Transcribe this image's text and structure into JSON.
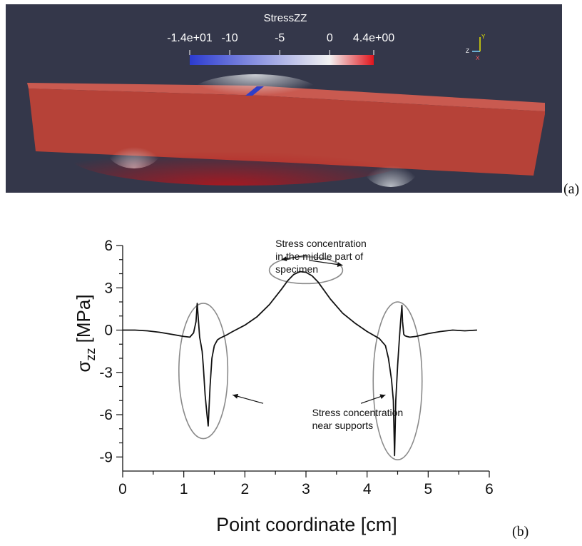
{
  "panel_a": {
    "label": "(a)",
    "colorbar": {
      "title": "StressZZ",
      "ticks": [
        {
          "text": "-1.4e+01",
          "value": -14
        },
        {
          "text": "-10",
          "value": -10
        },
        {
          "text": "-5",
          "value": -5
        },
        {
          "text": "0",
          "value": 0
        },
        {
          "text": "4.4e+00",
          "value": 4.4
        }
      ],
      "range": [
        -14,
        4.4
      ],
      "colors": {
        "low": "#2b3bd0",
        "mid": "#f2f2f2",
        "high": "#e0141c"
      }
    },
    "axes_widget": {
      "y": "Y",
      "z": "Z",
      "x": "X"
    },
    "colors": {
      "background": "#34374a",
      "beam": "#b9463c"
    }
  },
  "panel_b": {
    "label": "(b)",
    "chart_data": {
      "type": "line",
      "xlabel": "Point coordinate [cm]",
      "ylabel_main": "σ",
      "ylabel_sub": "zz",
      "ylabel_unit": " [MPa]",
      "xlim": [
        0,
        6
      ],
      "ylim": [
        -10,
        6
      ],
      "xticks": [
        0,
        1,
        2,
        3,
        4,
        5,
        6
      ],
      "yticks": [
        6,
        3,
        0,
        -3,
        -6,
        -9
      ],
      "grid": false,
      "series": [
        {
          "x": [
            0,
            0.2,
            0.4,
            0.6,
            0.8,
            1.0,
            1.1,
            1.16,
            1.2,
            1.22,
            1.24,
            1.26,
            1.28,
            1.3,
            1.32,
            1.35,
            1.38,
            1.4,
            1.43,
            1.46,
            1.5,
            1.55,
            1.6,
            1.7,
            1.8,
            2.0,
            2.2,
            2.4,
            2.6,
            2.7,
            2.8,
            2.9,
            3.0,
            3.1,
            3.2,
            3.4,
            3.6,
            3.8,
            4.0,
            4.2,
            4.3,
            4.35,
            4.4,
            4.43,
            4.45,
            4.47,
            4.5,
            4.53,
            4.55,
            4.57,
            4.58,
            4.6,
            4.62,
            4.65,
            4.7,
            4.8,
            5.0,
            5.2,
            5.4,
            5.6,
            5.8
          ],
          "y": [
            0,
            0,
            -0.05,
            -0.15,
            -0.3,
            -0.45,
            -0.5,
            -0.2,
            0.6,
            1.9,
            0.7,
            -0.5,
            -1.0,
            -1.5,
            -2.6,
            -4.6,
            -6.0,
            -6.8,
            -4.0,
            -2.0,
            -1.1,
            -0.7,
            -0.55,
            -0.35,
            -0.1,
            0.35,
            0.95,
            1.8,
            2.9,
            3.5,
            3.95,
            4.15,
            4.1,
            3.85,
            3.4,
            2.2,
            1.2,
            0.5,
            -0.1,
            -0.6,
            -1.1,
            -2.0,
            -3.5,
            -5.0,
            -8.9,
            -5.0,
            -2.5,
            -0.5,
            0.7,
            1.75,
            0.6,
            -0.3,
            -0.4,
            -0.45,
            -0.5,
            -0.45,
            -0.25,
            -0.1,
            0.0,
            -0.05,
            0.0
          ]
        }
      ],
      "annotations": [
        {
          "lines": [
            "Stress concentration",
            "in the middle part of",
            "specimen"
          ],
          "x": 2.5,
          "y": 5.9
        },
        {
          "lines": [
            "Stress concentration",
            "near supports"
          ],
          "x": 3.1,
          "y": -6.1
        }
      ],
      "ellipses": [
        {
          "cx": 1.32,
          "cy": -2.9,
          "rx": 0.4,
          "ry": 4.8
        },
        {
          "cx": 4.5,
          "cy": -3.6,
          "rx": 0.4,
          "ry": 5.6
        },
        {
          "cx": 3.0,
          "cy": 4.25,
          "rx": 0.6,
          "ry": 0.95
        }
      ],
      "arrows": [
        {
          "from": [
            3.05,
            4.95
          ],
          "to": [
            3.6,
            4.6
          ]
        },
        {
          "from": [
            3.0,
            5.3
          ],
          "to": [
            2.6,
            5.0
          ]
        },
        {
          "from": [
            2.3,
            -5.2
          ],
          "to": [
            1.8,
            -4.6
          ]
        },
        {
          "from": [
            3.9,
            -5.2
          ],
          "to": [
            4.3,
            -4.6
          ]
        }
      ],
      "colors": {
        "line": "#111111",
        "ellipse": "#8a8a8a"
      }
    }
  }
}
